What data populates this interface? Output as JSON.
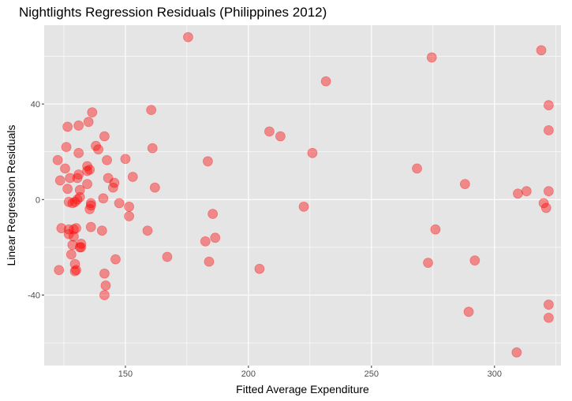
{
  "chart_data": {
    "type": "scatter",
    "title": "Nightlights Regression Residuals (Philippines 2012)",
    "xlabel": "Fitted Average Expenditure",
    "ylabel": "Linear Regression Residuals",
    "xlim": [
      117,
      327
    ],
    "ylim": [
      -69.5,
      73
    ],
    "xticks": [
      150,
      200,
      250,
      300
    ],
    "yticks": [
      -40,
      0,
      40
    ],
    "grid": true,
    "legend": "none",
    "point_color": "#ff0000",
    "point_opacity": 0.4,
    "background": "#e5e5e5",
    "gridline_color": "#ffffff",
    "points": [
      {
        "x": 122.5,
        "y": 16.5
      },
      {
        "x": 123,
        "y": -29.5
      },
      {
        "x": 123.5,
        "y": 8
      },
      {
        "x": 124,
        "y": -12
      },
      {
        "x": 125.5,
        "y": 13
      },
      {
        "x": 126,
        "y": 22
      },
      {
        "x": 126.5,
        "y": 30.5
      },
      {
        "x": 126.5,
        "y": 4.5
      },
      {
        "x": 127,
        "y": -1
      },
      {
        "x": 127,
        "y": -12.5
      },
      {
        "x": 127,
        "y": -14.5
      },
      {
        "x": 127.5,
        "y": 9
      },
      {
        "x": 128,
        "y": -23
      },
      {
        "x": 128.5,
        "y": -19
      },
      {
        "x": 128.5,
        "y": -1.5
      },
      {
        "x": 129,
        "y": -12.5
      },
      {
        "x": 129,
        "y": -15.5
      },
      {
        "x": 129.5,
        "y": -1
      },
      {
        "x": 129.5,
        "y": -27
      },
      {
        "x": 129.5,
        "y": -30
      },
      {
        "x": 130,
        "y": -12
      },
      {
        "x": 130,
        "y": -29.5
      },
      {
        "x": 130.5,
        "y": 0
      },
      {
        "x": 130.5,
        "y": 9
      },
      {
        "x": 131,
        "y": 10.5
      },
      {
        "x": 131,
        "y": 19.5
      },
      {
        "x": 131,
        "y": 31
      },
      {
        "x": 131.5,
        "y": 1
      },
      {
        "x": 131.5,
        "y": 4
      },
      {
        "x": 131.5,
        "y": -20
      },
      {
        "x": 132,
        "y": -18.5
      },
      {
        "x": 132,
        "y": -20
      },
      {
        "x": 134.5,
        "y": 14
      },
      {
        "x": 134.5,
        "y": 12
      },
      {
        "x": 134.5,
        "y": 6.5
      },
      {
        "x": 135,
        "y": 32.5
      },
      {
        "x": 135.5,
        "y": 12.5
      },
      {
        "x": 135.5,
        "y": -4
      },
      {
        "x": 136,
        "y": -1.5
      },
      {
        "x": 136,
        "y": -2.5
      },
      {
        "x": 136,
        "y": -11.5
      },
      {
        "x": 136.5,
        "y": 36.5
      },
      {
        "x": 138,
        "y": 22.5
      },
      {
        "x": 139,
        "y": 21
      },
      {
        "x": 140.5,
        "y": -13
      },
      {
        "x": 141,
        "y": 0.5
      },
      {
        "x": 141.5,
        "y": 26.5
      },
      {
        "x": 141.5,
        "y": -31
      },
      {
        "x": 141.5,
        "y": -40
      },
      {
        "x": 142,
        "y": -36
      },
      {
        "x": 142.5,
        "y": 16.5
      },
      {
        "x": 143,
        "y": 9
      },
      {
        "x": 145,
        "y": 5
      },
      {
        "x": 145.5,
        "y": 7
      },
      {
        "x": 146,
        "y": -25
      },
      {
        "x": 147.5,
        "y": -1.5
      },
      {
        "x": 150,
        "y": 17
      },
      {
        "x": 151.5,
        "y": -3
      },
      {
        "x": 151.5,
        "y": -7
      },
      {
        "x": 153,
        "y": 9.5
      },
      {
        "x": 159,
        "y": -13
      },
      {
        "x": 160.5,
        "y": 37.5
      },
      {
        "x": 161,
        "y": 21.5
      },
      {
        "x": 162,
        "y": 5
      },
      {
        "x": 167,
        "y": -24
      },
      {
        "x": 175.5,
        "y": 68
      },
      {
        "x": 182.5,
        "y": -17.5
      },
      {
        "x": 183.5,
        "y": 16
      },
      {
        "x": 184,
        "y": -26
      },
      {
        "x": 185.5,
        "y": -6
      },
      {
        "x": 186.5,
        "y": -16
      },
      {
        "x": 204.5,
        "y": -29
      },
      {
        "x": 208.5,
        "y": 28.5
      },
      {
        "x": 213,
        "y": 26.5
      },
      {
        "x": 222.5,
        "y": -3
      },
      {
        "x": 226,
        "y": 19.5
      },
      {
        "x": 231.5,
        "y": 49.5
      },
      {
        "x": 268.5,
        "y": 13
      },
      {
        "x": 273,
        "y": -26.5
      },
      {
        "x": 274.5,
        "y": 59.5
      },
      {
        "x": 276,
        "y": -12.5
      },
      {
        "x": 288,
        "y": 6.5
      },
      {
        "x": 289.5,
        "y": -47
      },
      {
        "x": 292,
        "y": -25.5
      },
      {
        "x": 309,
        "y": -64
      },
      {
        "x": 309.5,
        "y": 2.5
      },
      {
        "x": 313,
        "y": 3.5
      },
      {
        "x": 319,
        "y": 62.5
      },
      {
        "x": 320,
        "y": -1.5
      },
      {
        "x": 321,
        "y": -3.5
      },
      {
        "x": 322,
        "y": 39.5
      },
      {
        "x": 322,
        "y": 29
      },
      {
        "x": 322,
        "y": 3.5
      },
      {
        "x": 322,
        "y": -44
      },
      {
        "x": 322,
        "y": -49.5
      }
    ]
  }
}
